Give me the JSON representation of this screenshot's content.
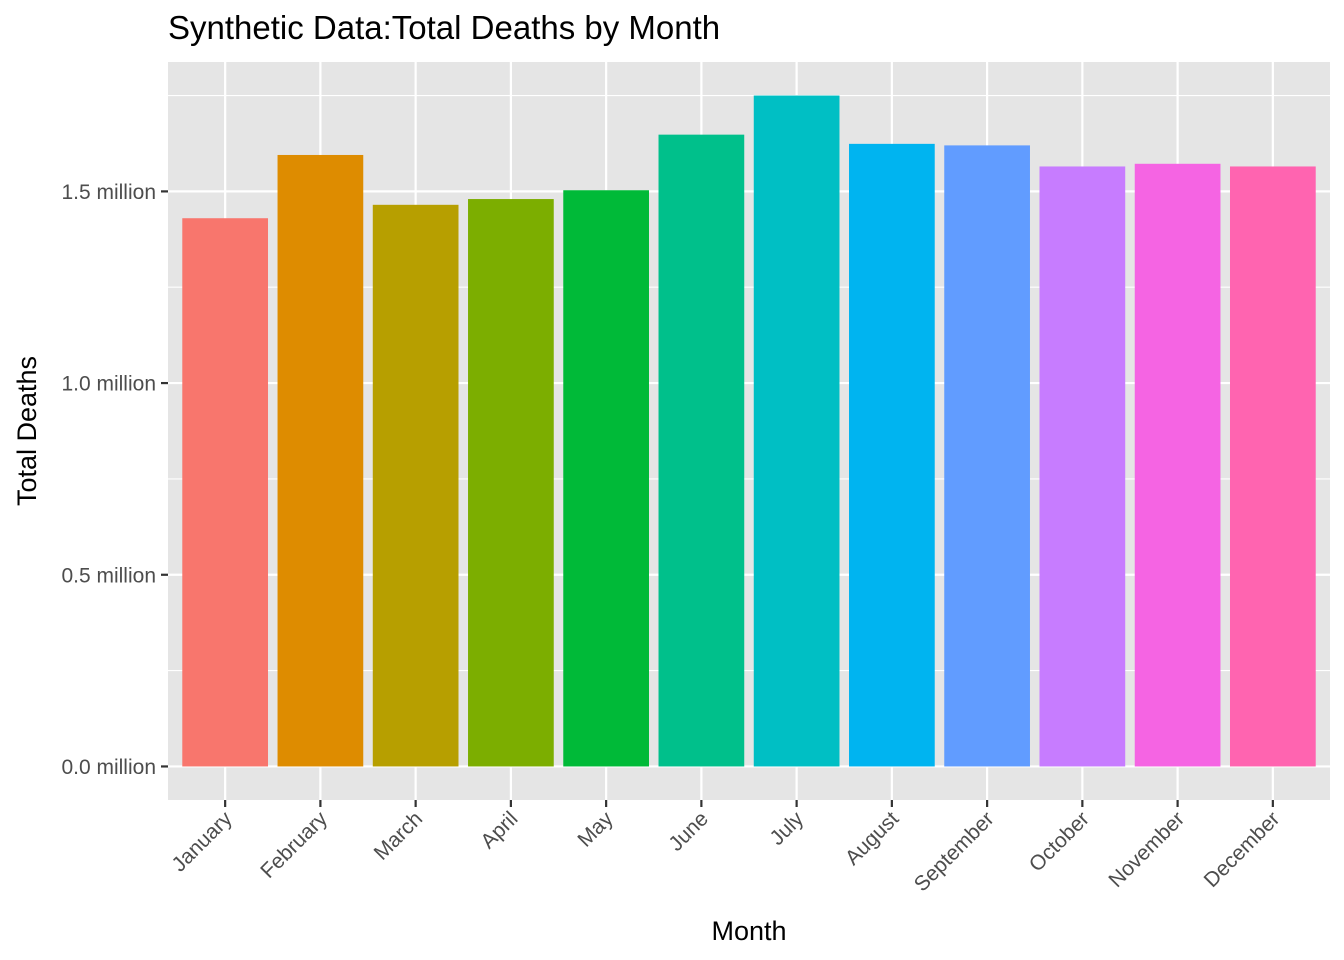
{
  "chart_data": {
    "type": "bar",
    "title": "Synthetic Data:Total Deaths by Month",
    "xlabel": "Month",
    "ylabel": "Total Deaths",
    "categories": [
      "January",
      "February",
      "March",
      "April",
      "May",
      "June",
      "July",
      "August",
      "September",
      "October",
      "November",
      "December"
    ],
    "values": [
      1430000,
      1595000,
      1465000,
      1480000,
      1503000,
      1648000,
      1750000,
      1624000,
      1620000,
      1565000,
      1572000,
      1565000
    ],
    "colors": [
      "#F8766D",
      "#DE8C00",
      "#B79F00",
      "#7CAE00",
      "#00BA38",
      "#00C08B",
      "#00BFC4",
      "#00B4F0",
      "#619CFF",
      "#C77CFF",
      "#F564E3",
      "#FF64B0"
    ],
    "y_ticks": [
      0,
      500000,
      1000000,
      1500000
    ],
    "y_tick_labels": [
      "0.0 million",
      "0.5 million",
      "1.0 million",
      "1.5 million"
    ],
    "ylim": [
      -87500,
      1837500
    ],
    "grid": true,
    "legend": "none",
    "panel_background": "#E5E5E5"
  }
}
